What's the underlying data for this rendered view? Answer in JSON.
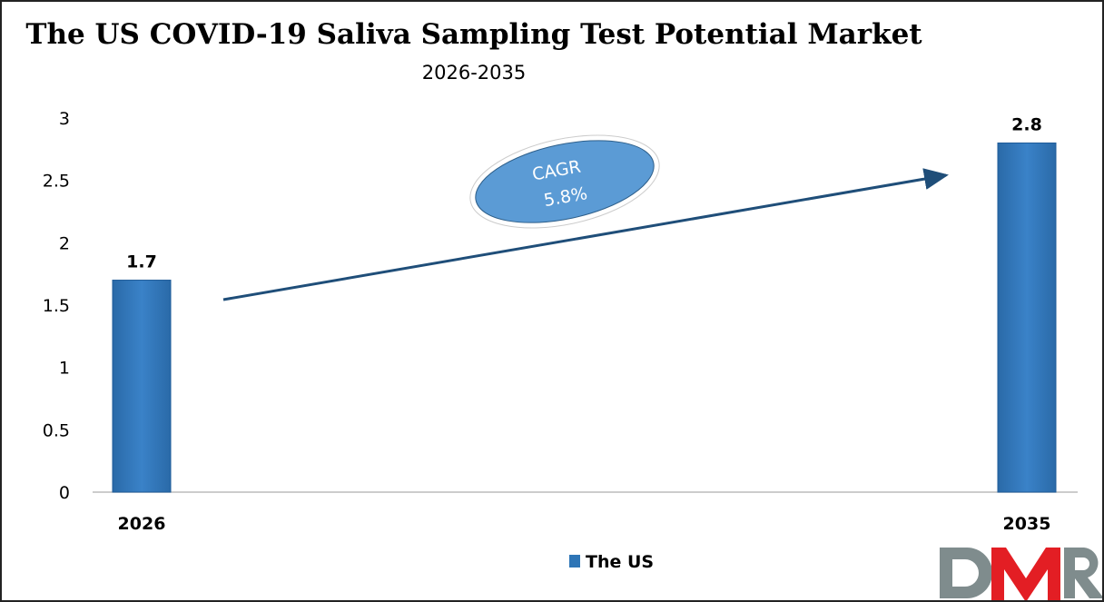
{
  "chart_data": {
    "type": "bar",
    "title": "The US COVID-19 Saliva Sampling Test Potential Market",
    "subtitle": "2026-2035",
    "categories": [
      "2026",
      "2035"
    ],
    "series": [
      {
        "name": "The US",
        "values": [
          1.7,
          2.8
        ]
      }
    ],
    "data_labels": [
      "1.7",
      "2.8"
    ],
    "ylim": [
      0,
      3
    ],
    "yticks": [
      "0",
      "0.5",
      "1",
      "1.5",
      "2",
      "2.5",
      "3"
    ],
    "grid": false,
    "legend": "bottom",
    "annotation": {
      "line1": "CAGR",
      "line2": "5.8%"
    },
    "colors": {
      "bar": "#2E75B6",
      "arrow": "#1F4E79",
      "ellipse": "#5B9BD5"
    }
  },
  "logo": {
    "text": "DMR",
    "colors": [
      "#7F8C8D",
      "#E31E24"
    ]
  }
}
